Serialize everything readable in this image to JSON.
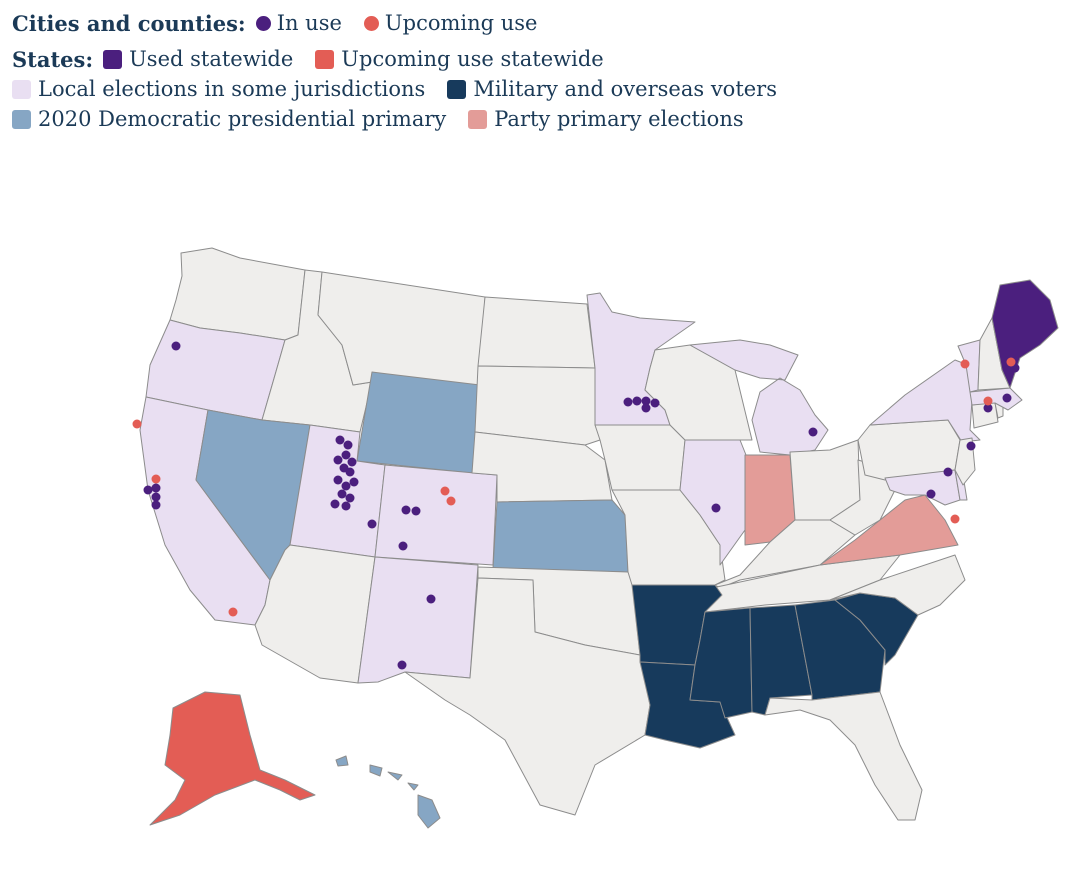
{
  "legend": {
    "cities_heading": "Cities and counties:",
    "in_use": "In use",
    "upcoming_use": "Upcoming use",
    "states_heading": "States:",
    "used_statewide": "Used statewide",
    "upcoming_statewide": "Upcoming use statewide",
    "local_some": "Local elections in some jurisdictions",
    "military": "Military and overseas voters",
    "dem_primary_2020": "2020 Democratic presidential primary",
    "party_primary": "Party primary elections"
  },
  "colors": {
    "in_use": "#4b1f7e",
    "upcoming": "#e35d55",
    "used_statewide": "#4b1f7e",
    "upcoming_statewide": "#e35d55",
    "local_some": "#e9dff2",
    "military": "#173a5c",
    "dem_primary_2020": "#86a6c4",
    "party_primary": "#e39c98",
    "none": "#efeeec",
    "border": "#8c8c8c"
  },
  "states": {
    "used_statewide": [
      "Maine"
    ],
    "upcoming_statewide": [
      "Alaska"
    ],
    "local_some": [
      "Oregon",
      "California",
      "Utah",
      "Colorado",
      "New Mexico",
      "Minnesota",
      "Michigan",
      "Illinois",
      "New York",
      "Vermont",
      "Massachusetts",
      "Maryland",
      "Delaware"
    ],
    "military": [
      "Arkansas",
      "Louisiana",
      "Mississippi",
      "Alabama",
      "Georgia",
      "South Carolina"
    ],
    "dem_primary_2020": [
      "Nevada",
      "Wyoming",
      "Kansas",
      "Hawaii"
    ],
    "party_primary": [
      "Indiana",
      "Virginia"
    ]
  }
}
